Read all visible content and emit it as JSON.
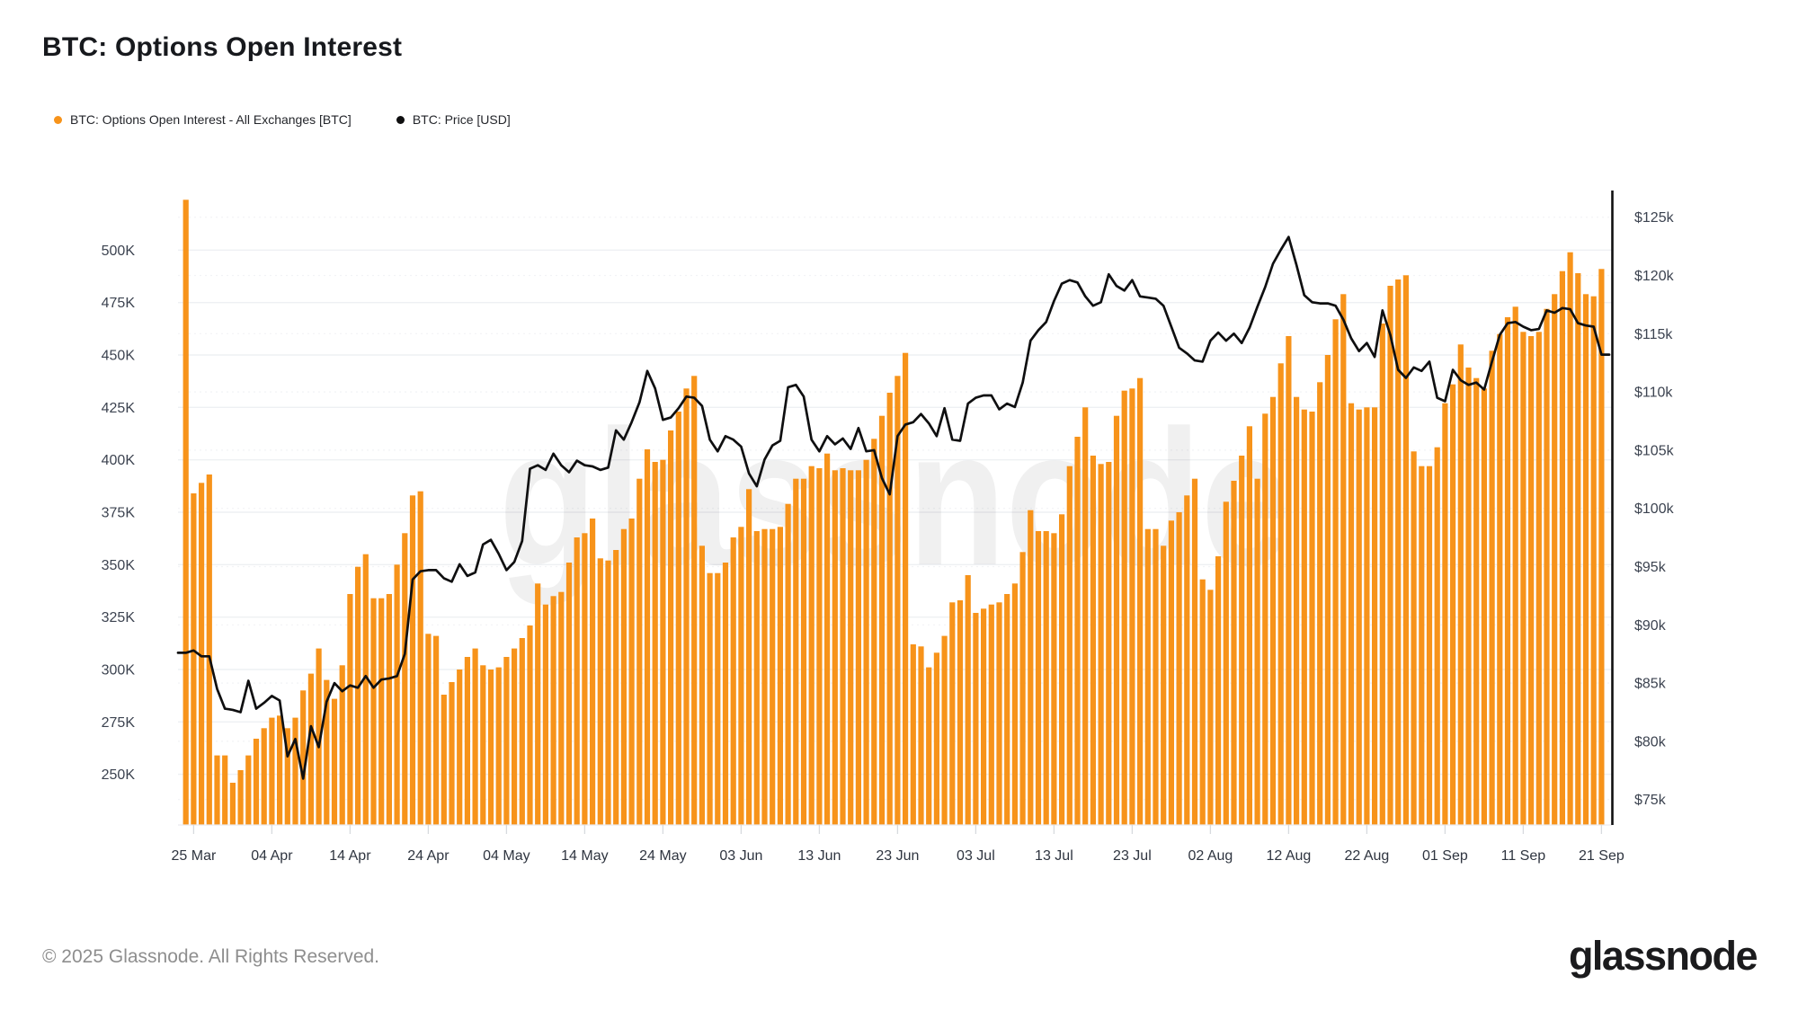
{
  "header": {
    "title": "BTC: Options Open Interest"
  },
  "legend": [
    {
      "label": "BTC: Options Open Interest - All Exchanges [BTC]",
      "color": "#f7931a"
    },
    {
      "label": "BTC: Price [USD]",
      "color": "#0f0f10"
    }
  ],
  "watermark": "glassnode",
  "footer": {
    "copyright": "© 2025 Glassnode. All Rights Reserved.",
    "logo": "glassnode"
  },
  "chart_data": {
    "type": "bar+line",
    "title": "BTC: Options Open Interest",
    "start_date": "2025-03-24",
    "frequency": "daily",
    "x_tick_labels": [
      "25 Mar",
      "04 Apr",
      "14 Apr",
      "24 Apr",
      "04 May",
      "14 May",
      "24 May",
      "03 Jun",
      "13 Jun",
      "23 Jun",
      "03 Jul",
      "13 Jul",
      "23 Jul",
      "02 Aug",
      "12 Aug",
      "22 Aug",
      "01 Sep",
      "11 Sep",
      "21 Sep"
    ],
    "left_axis": {
      "labels": [
        "500K",
        "475K",
        "450K",
        "425K",
        "400K",
        "375K",
        "350K",
        "325K",
        "300K",
        "275K",
        "250K"
      ],
      "values_k": [
        500,
        475,
        450,
        425,
        400,
        375,
        350,
        325,
        300,
        275,
        250
      ],
      "unit": "BTC (thousands)"
    },
    "right_axis": {
      "labels": [
        "$125k",
        "$120k",
        "$115k",
        "$110k",
        "$105k",
        "$100k",
        "$95k",
        "$90k",
        "$85k",
        "$80k",
        "$75k"
      ],
      "values_usd_k": [
        125,
        120,
        115,
        110,
        105,
        100,
        95,
        90,
        85,
        80,
        75
      ],
      "unit": "USD (thousands)"
    },
    "series": [
      {
        "name": "BTC: Options Open Interest - All Exchanges [BTC]",
        "type": "bar",
        "color": "#f7931a",
        "unit": "K BTC",
        "note": "first bar clipped at plot top",
        "values": [
          524,
          384,
          389,
          393,
          259,
          259,
          246,
          252,
          259,
          267,
          272,
          277,
          278,
          272,
          277,
          290,
          298,
          310,
          295,
          286,
          302,
          336,
          349,
          355,
          334,
          334,
          336,
          350,
          365,
          383,
          385,
          317,
          316,
          288,
          294,
          300,
          306,
          310,
          302,
          300,
          301,
          306,
          310,
          315,
          321,
          341,
          331,
          335,
          337,
          351,
          363,
          365,
          372,
          353,
          352,
          357,
          367,
          372,
          391,
          405,
          399,
          400,
          414,
          423,
          434,
          440,
          359,
          346,
          346,
          351,
          363,
          368,
          386,
          366,
          367,
          367,
          368,
          379,
          391,
          391,
          397,
          396,
          403,
          395,
          396,
          395,
          395,
          400,
          410,
          421,
          432,
          440,
          451,
          312,
          311,
          301,
          308,
          316,
          332,
          333,
          345,
          327,
          329,
          331,
          332,
          336,
          341,
          356,
          376,
          366,
          366,
          365,
          374,
          397,
          411,
          425,
          402,
          398,
          399,
          421,
          433,
          434,
          439,
          367,
          367,
          359,
          371,
          375,
          383,
          391,
          343,
          338,
          354,
          380,
          390,
          402,
          416,
          391,
          422,
          430,
          446,
          459,
          430,
          424,
          423,
          437,
          450,
          467,
          479,
          427,
          424,
          425,
          425,
          465,
          483,
          486,
          488,
          404,
          397,
          397,
          406,
          427,
          436,
          455,
          444,
          439,
          434,
          452,
          460,
          468,
          473,
          461,
          459,
          461,
          472,
          479,
          490,
          499,
          489,
          479,
          478,
          491
        ]
      },
      {
        "name": "BTC: Price [USD]",
        "type": "line",
        "color": "#0f0f10",
        "unit": "USD thousands",
        "values": [
          87.6,
          87.8,
          87.3,
          87.3,
          84.5,
          82.8,
          82.7,
          82.5,
          85.2,
          82.8,
          83.3,
          83.9,
          83.5,
          78.7,
          80.2,
          76.8,
          81.3,
          79.5,
          83.4,
          85.0,
          84.3,
          84.8,
          84.6,
          85.6,
          84.6,
          85.3,
          85.4,
          85.6,
          87.5,
          93.9,
          94.6,
          94.7,
          94.7,
          94.0,
          93.7,
          95.2,
          94.2,
          94.5,
          96.9,
          97.3,
          96.1,
          94.7,
          95.4,
          97.2,
          103.4,
          103.7,
          103.3,
          104.7,
          103.7,
          103.1,
          104.1,
          103.7,
          103.6,
          103.3,
          103.5,
          106.7,
          105.9,
          107.4,
          109.1,
          111.8,
          110.3,
          107.6,
          107.8,
          108.6,
          109.6,
          109.5,
          108.8,
          105.9,
          104.9,
          106.2,
          105.9,
          105.3,
          103.0,
          101.9,
          104.2,
          105.4,
          105.8,
          110.4,
          110.6,
          109.6,
          105.9,
          104.9,
          106.2,
          105.5,
          106.0,
          105.1,
          106.9,
          104.9,
          105.0,
          102.6,
          101.2,
          106.2,
          107.2,
          107.4,
          108.1,
          107.3,
          106.2,
          108.6,
          105.9,
          105.8,
          109.0,
          109.5,
          109.7,
          109.7,
          108.5,
          109.0,
          108.7,
          110.8,
          114.4,
          115.3,
          116.0,
          117.8,
          119.3,
          119.6,
          119.4,
          118.2,
          117.4,
          117.7,
          120.1,
          119.1,
          118.7,
          119.6,
          118.2,
          118.1,
          118.0,
          117.4,
          115.6,
          113.8,
          113.3,
          112.7,
          112.6,
          114.4,
          115.1,
          114.4,
          115.0,
          114.2,
          115.5,
          117.3,
          119.0,
          121.0,
          122.2,
          123.3,
          120.9,
          118.3,
          117.7,
          117.6,
          117.6,
          117.4,
          116.2,
          114.6,
          113.5,
          114.2,
          113.0,
          117.0,
          114.9,
          111.9,
          111.2,
          112.1,
          111.8,
          112.6,
          109.5,
          109.2,
          111.9,
          111.0,
          110.6,
          110.8,
          110.2,
          112.6,
          114.9,
          115.9,
          116.0,
          115.6,
          115.3,
          115.4,
          117.0,
          116.8,
          117.2,
          117.1,
          115.9,
          115.7,
          115.6,
          113.2
        ]
      }
    ],
    "layout": {
      "grid": true,
      "legend_position": "top-left",
      "left_ylim_k": [
        226,
        524
      ],
      "right_ylim_usd_k": [
        72.6,
        126.5
      ]
    }
  }
}
